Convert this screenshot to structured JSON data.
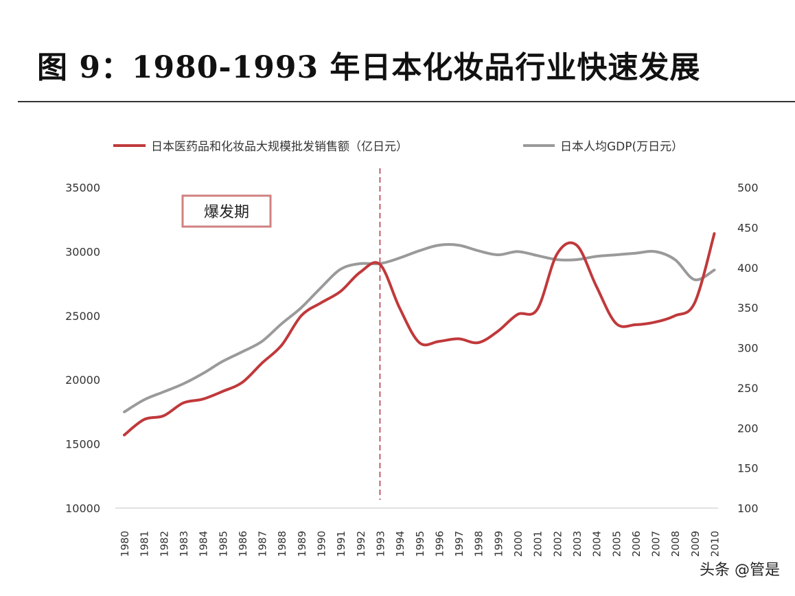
{
  "title": "图 9：1980-1993 年日本化妆品行业快速发展",
  "watermark": "头条 @管是",
  "colors": {
    "series1": "#c0393b",
    "series2": "#9a9a9a",
    "divider": "#b03040",
    "annotation_border": "#d08080"
  },
  "chart_data": {
    "type": "line",
    "legend_position": "top",
    "grid": false,
    "categories": [
      "1980",
      "1981",
      "1982",
      "1983",
      "1984",
      "1985",
      "1986",
      "1987",
      "1988",
      "1989",
      "1990",
      "1991",
      "1992",
      "1993",
      "1994",
      "1995",
      "1996",
      "1997",
      "1998",
      "1999",
      "2000",
      "2001",
      "2002",
      "2003",
      "2004",
      "2005",
      "2006",
      "2007",
      "2008",
      "2009",
      "2010"
    ],
    "y_left": {
      "min": 10000,
      "max": 35000,
      "ticks": [
        "35000",
        "30000",
        "25000",
        "20000",
        "15000",
        "10000"
      ]
    },
    "y_right": {
      "min": 100,
      "max": 500,
      "ticks": [
        "500",
        "450",
        "400",
        "350",
        "300",
        "250",
        "200",
        "150",
        "100"
      ]
    },
    "series": [
      {
        "name": "日本医药品和化妆品大规模批发销售额（亿日元）",
        "axis": "left",
        "values": [
          15700,
          16900,
          17200,
          18200,
          18500,
          19100,
          19800,
          21300,
          22700,
          25000,
          26000,
          26900,
          28400,
          29000,
          25600,
          22900,
          23000,
          23200,
          22900,
          23800,
          25100,
          25500,
          29800,
          30500,
          27300,
          24400,
          24300,
          24500,
          25000,
          26000,
          31400
        ]
      },
      {
        "name": "日本人均GDP(万日元）",
        "axis": "right",
        "values": [
          220,
          235,
          245,
          255,
          268,
          283,
          295,
          308,
          330,
          350,
          375,
          398,
          405,
          405,
          412,
          421,
          428,
          428,
          421,
          416,
          420,
          415,
          410,
          410,
          414,
          416,
          418,
          420,
          410,
          385,
          397
        ]
      }
    ],
    "annotations": [
      {
        "text": "爆发期"
      }
    ],
    "divider_category": "1993"
  }
}
